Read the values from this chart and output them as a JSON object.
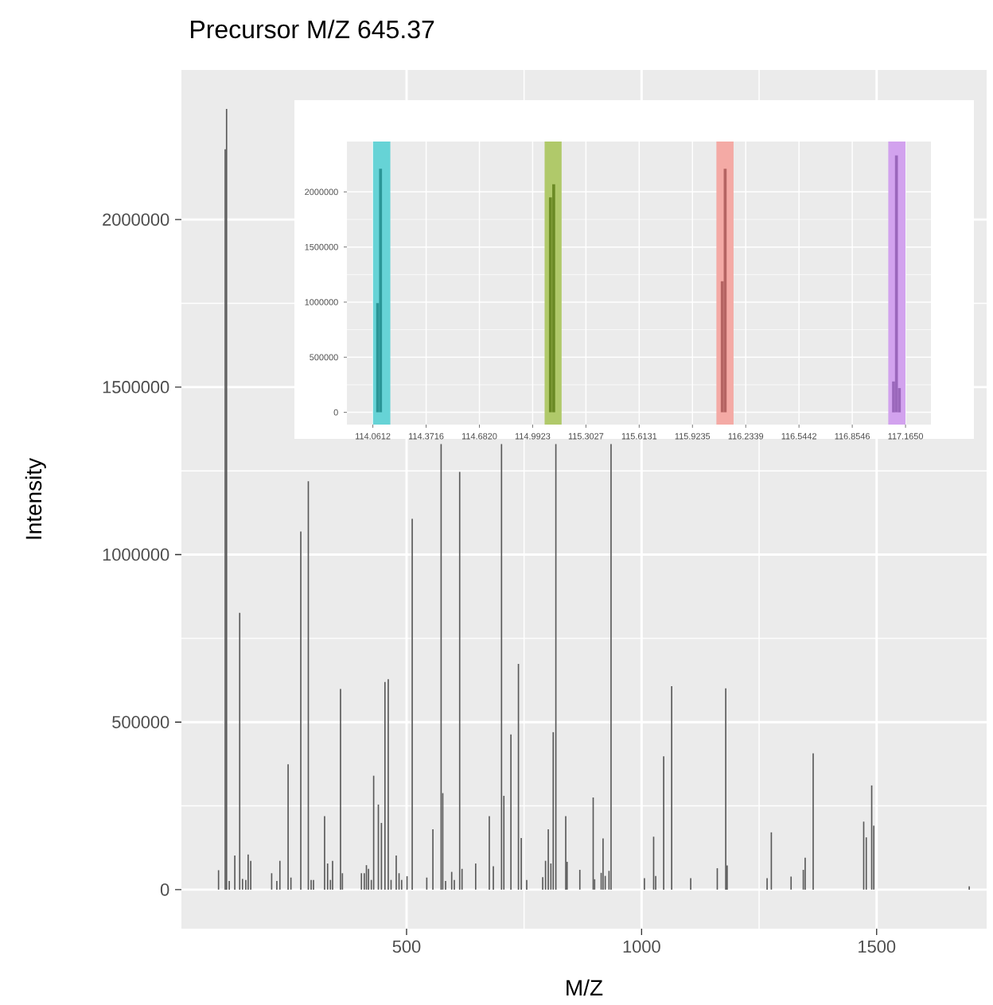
{
  "chart_data": [
    {
      "type": "bar",
      "title": "Precursor M/Z 645.37",
      "xlabel": "M/Z",
      "ylabel": "Intensity",
      "color": "#595959",
      "grid": true,
      "x": [
        100,
        114.1,
        117.1,
        122.8,
        134.6,
        145,
        151,
        158,
        163,
        168.5,
        213,
        224,
        230.5,
        248,
        254,
        275,
        291,
        297,
        302,
        325.6,
        332,
        338,
        342.6,
        359.5,
        363.5,
        404,
        410,
        414.6,
        419,
        425,
        430,
        440,
        446.5,
        454,
        461,
        467,
        478,
        484,
        489.5,
        501,
        512,
        543,
        556,
        573.5,
        577,
        583,
        596,
        601.6,
        613,
        618,
        647,
        676,
        684.6,
        702,
        707,
        722,
        738,
        744,
        755.6,
        789.6,
        795.6,
        801.5,
        807,
        812,
        817.6,
        838.6,
        841.5,
        868.6,
        897,
        900,
        914,
        918,
        922.6,
        930.7,
        935,
        1006,
        1025.6,
        1030,
        1047,
        1064,
        1104.5,
        1161,
        1179,
        1182,
        1267,
        1276,
        1318,
        1344,
        1348,
        1365,
        1472.5,
        1478,
        1489.5,
        1494,
        1697
      ],
      "values": [
        58000,
        2210000,
        2330000,
        26000,
        102000,
        826000,
        32000,
        29000,
        105000,
        86000,
        49000,
        26000,
        86000,
        374000,
        36000,
        1069000,
        1219000,
        29000,
        29000,
        219000,
        78000,
        29000,
        86000,
        599000,
        49000,
        49000,
        49000,
        73000,
        62000,
        29000,
        340000,
        254000,
        199000,
        620000,
        628000,
        29000,
        102000,
        49000,
        29000,
        40000,
        1107000,
        36000,
        180000,
        1330000,
        288000,
        26000,
        53000,
        29000,
        1247000,
        62000,
        78000,
        219000,
        70000,
        1330000,
        280000,
        463000,
        674000,
        154000,
        29000,
        37000,
        86000,
        180000,
        78000,
        470000,
        1330000,
        219000,
        83000,
        59000,
        275000,
        31000,
        50000,
        153000,
        41000,
        56000,
        1330000,
        34000,
        158000,
        41000,
        398000,
        607000,
        34000,
        64000,
        601000,
        72000,
        34000,
        171000,
        39000,
        59000,
        95000,
        407000,
        203000,
        156000,
        311000,
        191000,
        10000
      ],
      "xlim": [
        21,
        1734
      ],
      "ylim": [
        -116500,
        2446500
      ],
      "xticks": [
        500,
        1000,
        1500
      ],
      "yticks": [
        0,
        500000,
        1000000,
        1500000,
        2000000
      ]
    },
    {
      "type": "bar",
      "grid": true,
      "x": [
        114.089,
        114.106,
        115.096,
        115.115,
        116.097,
        116.114,
        117.095,
        117.112,
        117.129
      ],
      "values": [
        990000,
        2210000,
        1950000,
        2070000,
        1190000,
        2210000,
        280000,
        2330000,
        220000
      ],
      "colors": [
        "#2a9596",
        "#2a9596",
        "#6b8a25",
        "#6b8a25",
        "#b56462",
        "#b56462",
        "#9a67bb",
        "#9a67bb",
        "#9a67bb"
      ],
      "bands": [
        {
          "axis": "x",
          "from": 114.061,
          "to": 114.163,
          "color": "#66d3d6"
        },
        {
          "axis": "x",
          "from": 115.062,
          "to": 115.161,
          "color": "#b0c96a"
        },
        {
          "axis": "x",
          "from": 116.063,
          "to": 116.163,
          "color": "#f4aaa5"
        },
        {
          "axis": "x",
          "from": 117.064,
          "to": 117.165,
          "color": "#d2a2ee"
        }
      ],
      "xlim": [
        113.91,
        117.313
      ],
      "ylim": [
        -111000,
        2457000
      ],
      "xticks": [
        {
          "value": 114.0612,
          "label": "114.0612"
        },
        {
          "value": 114.3716,
          "label": "114.3716"
        },
        {
          "value": 114.682,
          "label": "114.6820"
        },
        {
          "value": 114.9923,
          "label": "114.9923"
        },
        {
          "value": 115.3027,
          "label": "115.3027"
        },
        {
          "value": 115.6131,
          "label": "115.6131"
        },
        {
          "value": 115.9235,
          "label": "115.9235"
        },
        {
          "value": 116.2339,
          "label": "116.2339"
        },
        {
          "value": 116.5442,
          "label": "116.5442"
        },
        {
          "value": 116.8546,
          "label": "116.8546"
        },
        {
          "value": 117.165,
          "label": "117.1650"
        }
      ],
      "yticks": [
        0,
        500000,
        1000000,
        1500000,
        2000000
      ]
    }
  ]
}
